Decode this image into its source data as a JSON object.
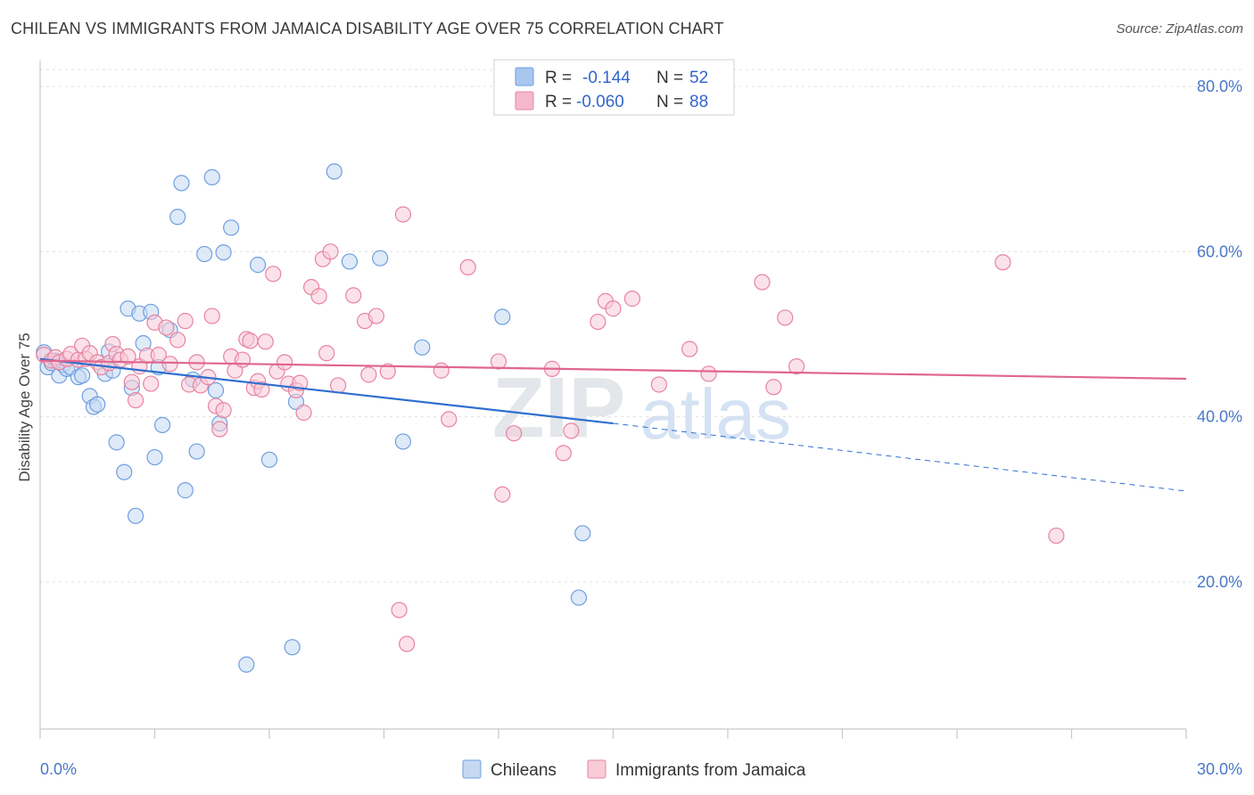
{
  "title": "CHILEAN VS IMMIGRANTS FROM JAMAICA DISABILITY AGE OVER 75 CORRELATION CHART",
  "source": "Source: ZipAtlas.com",
  "watermark": {
    "zip": "ZIP",
    "atlas": "atlas"
  },
  "legend_stats": [
    {
      "r_label": "R =",
      "r_value": "-0.144",
      "n_label": "N =",
      "n_value": "52",
      "color": "#a9c6ef"
    },
    {
      "r_label": "R =",
      "r_value": "-0.060",
      "n_label": "N =",
      "n_value": "88",
      "color": "#f5b8cb"
    }
  ],
  "chart_data": {
    "type": "scatter",
    "xlabel": "",
    "ylabel": "Disability Age Over 75",
    "xlim": [
      0,
      30
    ],
    "ylim": [
      0,
      85
    ],
    "x_tick_labels": [
      "0.0%",
      "30.0%"
    ],
    "y_ticks": [
      20,
      40,
      60,
      80
    ],
    "y_tick_labels": [
      "20.0%",
      "40.0%",
      "60.0%",
      "80.0%"
    ],
    "grid": true,
    "series": [
      {
        "name": "Chileans",
        "color": "#6f9fe0",
        "fill": "#c5d9f3",
        "trend": {
          "x0": 0,
          "y0": 47.0,
          "x1": 15,
          "y1": 39.2,
          "dash_x1": 30,
          "dash_y1": 31.0,
          "color": "#2f6fd0"
        },
        "points": [
          [
            0.1,
            47.8
          ],
          [
            0.2,
            46.0
          ],
          [
            0.3,
            46.5
          ],
          [
            0.4,
            46.8
          ],
          [
            0.5,
            45.0
          ],
          [
            0.6,
            46.3
          ],
          [
            0.7,
            45.8
          ],
          [
            0.8,
            46.0
          ],
          [
            1.0,
            44.8
          ],
          [
            1.1,
            45.0
          ],
          [
            1.3,
            42.5
          ],
          [
            1.4,
            41.2
          ],
          [
            1.5,
            41.5
          ],
          [
            1.7,
            45.2
          ],
          [
            1.8,
            47.9
          ],
          [
            1.9,
            45.6
          ],
          [
            2.0,
            36.9
          ],
          [
            2.2,
            33.3
          ],
          [
            2.3,
            53.1
          ],
          [
            2.4,
            43.5
          ],
          [
            2.5,
            28.0
          ],
          [
            2.6,
            52.5
          ],
          [
            2.7,
            48.9
          ],
          [
            2.9,
            52.7
          ],
          [
            3.0,
            35.1
          ],
          [
            3.1,
            46.0
          ],
          [
            3.2,
            39.0
          ],
          [
            3.4,
            50.5
          ],
          [
            3.6,
            64.2
          ],
          [
            3.7,
            68.3
          ],
          [
            3.8,
            31.1
          ],
          [
            4.0,
            44.5
          ],
          [
            4.1,
            35.8
          ],
          [
            4.3,
            59.7
          ],
          [
            4.5,
            69.0
          ],
          [
            4.6,
            43.2
          ],
          [
            4.7,
            39.2
          ],
          [
            4.8,
            59.9
          ],
          [
            5.0,
            62.9
          ],
          [
            5.4,
            10.0
          ],
          [
            5.7,
            58.4
          ],
          [
            6.0,
            34.8
          ],
          [
            6.6,
            12.1
          ],
          [
            6.7,
            41.8
          ],
          [
            7.7,
            69.7
          ],
          [
            8.1,
            58.8
          ],
          [
            8.9,
            59.2
          ],
          [
            9.5,
            37.0
          ],
          [
            10.0,
            48.4
          ],
          [
            12.1,
            52.1
          ],
          [
            14.1,
            18.1
          ],
          [
            14.2,
            25.9
          ]
        ]
      },
      {
        "name": "Immigrants from Jamaica",
        "color": "#e8839f",
        "fill": "#f8cbd8",
        "trend": {
          "x0": 0,
          "y0": 46.8,
          "x1": 30,
          "y1": 44.6,
          "color": "#e0668f"
        },
        "points": [
          [
            0.1,
            47.5
          ],
          [
            0.3,
            46.8
          ],
          [
            0.4,
            47.2
          ],
          [
            0.5,
            46.6
          ],
          [
            0.7,
            47.0
          ],
          [
            0.8,
            47.6
          ],
          [
            1.0,
            46.9
          ],
          [
            1.1,
            48.6
          ],
          [
            1.2,
            47.0
          ],
          [
            1.3,
            47.7
          ],
          [
            1.5,
            46.6
          ],
          [
            1.6,
            46.0
          ],
          [
            1.8,
            46.5
          ],
          [
            1.9,
            48.8
          ],
          [
            2.0,
            47.6
          ],
          [
            2.1,
            46.9
          ],
          [
            2.3,
            47.3
          ],
          [
            2.4,
            44.2
          ],
          [
            2.5,
            42.0
          ],
          [
            2.6,
            46.1
          ],
          [
            2.8,
            47.4
          ],
          [
            2.9,
            44.0
          ],
          [
            3.0,
            51.4
          ],
          [
            3.1,
            47.5
          ],
          [
            3.3,
            50.8
          ],
          [
            3.4,
            46.4
          ],
          [
            3.6,
            49.3
          ],
          [
            3.8,
            51.6
          ],
          [
            3.9,
            43.9
          ],
          [
            4.1,
            46.6
          ],
          [
            4.2,
            43.8
          ],
          [
            4.4,
            44.8
          ],
          [
            4.5,
            52.2
          ],
          [
            4.6,
            41.3
          ],
          [
            4.7,
            38.5
          ],
          [
            4.8,
            40.8
          ],
          [
            5.0,
            47.3
          ],
          [
            5.1,
            45.6
          ],
          [
            5.3,
            46.9
          ],
          [
            5.4,
            49.4
          ],
          [
            5.5,
            49.2
          ],
          [
            5.6,
            43.5
          ],
          [
            5.7,
            44.3
          ],
          [
            5.8,
            43.3
          ],
          [
            5.9,
            49.1
          ],
          [
            6.1,
            57.3
          ],
          [
            6.2,
            45.5
          ],
          [
            6.4,
            46.6
          ],
          [
            6.5,
            44.0
          ],
          [
            6.7,
            43.2
          ],
          [
            6.8,
            44.1
          ],
          [
            6.9,
            40.5
          ],
          [
            7.1,
            55.7
          ],
          [
            7.3,
            54.6
          ],
          [
            7.4,
            59.1
          ],
          [
            7.5,
            47.7
          ],
          [
            7.6,
            60.0
          ],
          [
            7.8,
            43.8
          ],
          [
            8.2,
            54.7
          ],
          [
            8.5,
            51.6
          ],
          [
            8.6,
            45.1
          ],
          [
            8.8,
            52.2
          ],
          [
            9.1,
            45.5
          ],
          [
            9.4,
            16.6
          ],
          [
            9.5,
            64.5
          ],
          [
            9.6,
            12.5
          ],
          [
            10.5,
            45.6
          ],
          [
            10.7,
            39.7
          ],
          [
            11.2,
            58.1
          ],
          [
            12.0,
            46.7
          ],
          [
            12.1,
            30.6
          ],
          [
            12.4,
            38.0
          ],
          [
            13.4,
            45.8
          ],
          [
            13.7,
            35.6
          ],
          [
            13.9,
            38.3
          ],
          [
            14.6,
            51.5
          ],
          [
            14.8,
            54.0
          ],
          [
            15.0,
            53.1
          ],
          [
            15.5,
            54.3
          ],
          [
            16.2,
            43.9
          ],
          [
            17.0,
            48.2
          ],
          [
            17.5,
            45.2
          ],
          [
            18.9,
            56.3
          ],
          [
            19.2,
            43.6
          ],
          [
            19.5,
            52.0
          ],
          [
            19.8,
            46.1
          ],
          [
            25.2,
            58.7
          ],
          [
            26.6,
            25.6
          ]
        ]
      }
    ]
  }
}
